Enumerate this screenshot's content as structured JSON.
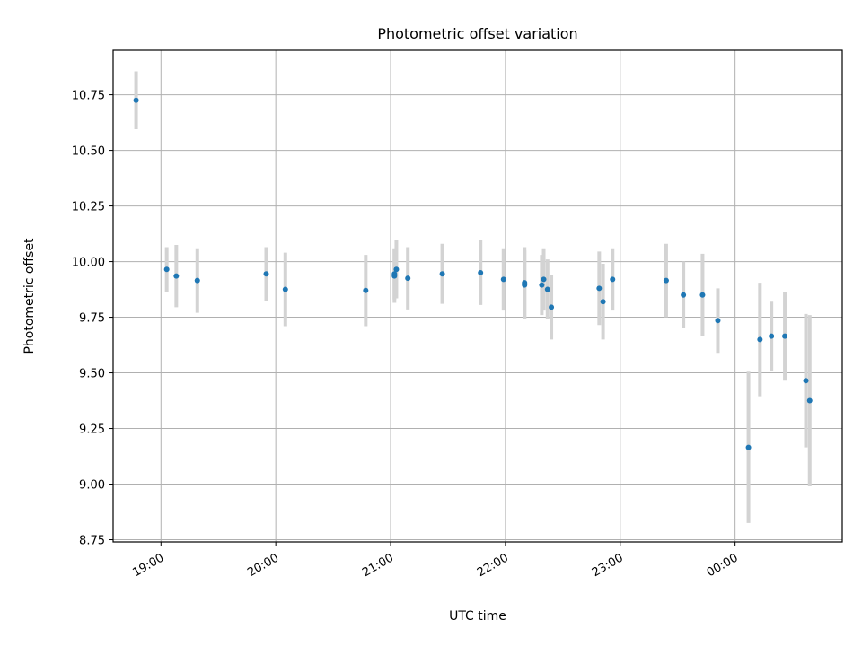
{
  "chart_data": {
    "type": "scatter",
    "title": "Photometric offset variation",
    "xlabel": "UTC time",
    "ylabel": "Photometric offset",
    "xlim": [
      "18:35",
      "00:56"
    ],
    "ylim": [
      8.74,
      10.95
    ],
    "x_tick_labels": [
      "19:00",
      "20:00",
      "21:00",
      "22:00",
      "23:00",
      "00:00"
    ],
    "x_tick_values": [
      "19:00",
      "20:00",
      "21:00",
      "22:00",
      "23:00",
      "00:00"
    ],
    "y_ticks": [
      8.75,
      9.0,
      9.25,
      9.5,
      9.75,
      10.0,
      10.25,
      10.5,
      10.75
    ],
    "y_tick_labels": [
      "8.75",
      "9.00",
      "9.25",
      "9.50",
      "9.75",
      "10.00",
      "10.25",
      "10.50",
      "10.75"
    ],
    "grid": true,
    "point_color": "#1f77b4",
    "errorbar_color": "#d3d3d3",
    "points": [
      {
        "x": "18:47",
        "y": 10.725,
        "err": 0.13
      },
      {
        "x": "19:03",
        "y": 9.965,
        "err": 0.1
      },
      {
        "x": "19:08",
        "y": 9.935,
        "err": 0.14
      },
      {
        "x": "19:19",
        "y": 9.915,
        "err": 0.145
      },
      {
        "x": "19:55",
        "y": 9.945,
        "err": 0.12
      },
      {
        "x": "20:05",
        "y": 9.875,
        "err": 0.165
      },
      {
        "x": "20:47",
        "y": 9.87,
        "err": 0.16
      },
      {
        "x": "21:02",
        "y": 9.935,
        "err": 0.12
      },
      {
        "x": "21:02",
        "y": 9.945,
        "err": 0.115
      },
      {
        "x": "21:03",
        "y": 9.965,
        "err": 0.13
      },
      {
        "x": "21:09",
        "y": 9.925,
        "err": 0.14
      },
      {
        "x": "21:27",
        "y": 9.945,
        "err": 0.135
      },
      {
        "x": "21:47",
        "y": 9.95,
        "err": 0.145
      },
      {
        "x": "21:59",
        "y": 9.92,
        "err": 0.14
      },
      {
        "x": "22:10",
        "y": 9.895,
        "err": 0.155
      },
      {
        "x": "22:10",
        "y": 9.905,
        "err": 0.16
      },
      {
        "x": "22:19",
        "y": 9.895,
        "err": 0.135
      },
      {
        "x": "22:20",
        "y": 9.92,
        "err": 0.14
      },
      {
        "x": "22:22",
        "y": 9.875,
        "err": 0.135
      },
      {
        "x": "22:24",
        "y": 9.795,
        "err": 0.145
      },
      {
        "x": "22:49",
        "y": 9.88,
        "err": 0.165
      },
      {
        "x": "22:51",
        "y": 9.82,
        "err": 0.17
      },
      {
        "x": "22:56",
        "y": 9.92,
        "err": 0.14
      },
      {
        "x": "23:24",
        "y": 9.915,
        "err": 0.165
      },
      {
        "x": "23:33",
        "y": 9.85,
        "err": 0.15
      },
      {
        "x": "23:43",
        "y": 9.85,
        "err": 0.185
      },
      {
        "x": "23:51",
        "y": 9.735,
        "err": 0.145
      },
      {
        "x": "00:07",
        "y": 9.165,
        "err": 0.34
      },
      {
        "x": "00:13",
        "y": 9.65,
        "err": 0.255
      },
      {
        "x": "00:19",
        "y": 9.665,
        "err": 0.155
      },
      {
        "x": "00:26",
        "y": 9.665,
        "err": 0.2
      },
      {
        "x": "00:37",
        "y": 9.465,
        "err": 0.3
      },
      {
        "x": "00:39",
        "y": 9.375,
        "err": 0.385
      }
    ]
  }
}
